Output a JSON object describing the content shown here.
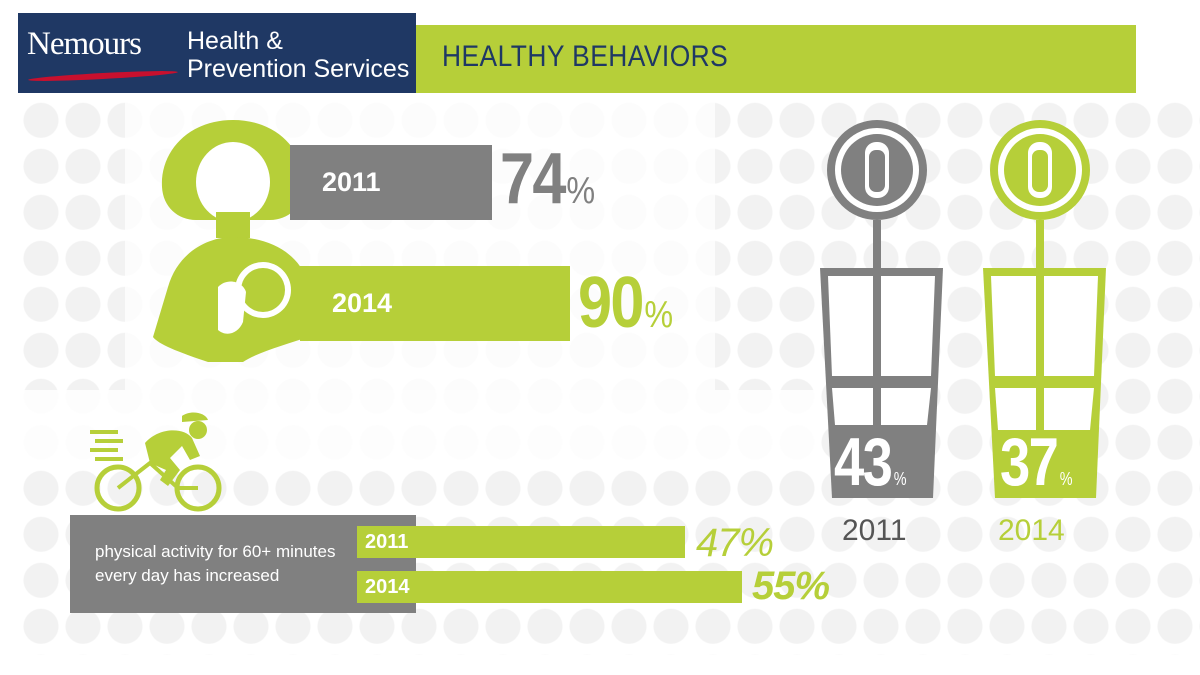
{
  "header": {
    "brand": "Nemours",
    "brand_sub_line1": "Health &",
    "brand_sub_line2": "Prevention Services",
    "title": "HEALTHY BEHAVIORS"
  },
  "breastfeeding": {
    "year_2011": "2011",
    "pct_2011": "74",
    "year_2014": "2014",
    "pct_2014": "90",
    "percent_sign": "%"
  },
  "physical_activity": {
    "description_line1": "physical activity for 60+ minutes",
    "description_line2": "every day has increased",
    "year_2011": "2011",
    "pct_2011": "47%",
    "year_2014": "2014",
    "pct_2014": "55%"
  },
  "drinks": {
    "pct_2011": "43",
    "pct_2014": "37",
    "percent_sign": "%",
    "year_2011": "2011",
    "year_2014": "2014",
    "fill_2011": 0.43,
    "fill_2014": 0.37
  },
  "colors": {
    "green": "#b6cf39",
    "gray": "#808080",
    "navy": "#1f3864",
    "brand_red": "#c8102e"
  },
  "icons": [
    "mother-child-icon",
    "cyclist-icon",
    "drink-cup-icon"
  ]
}
